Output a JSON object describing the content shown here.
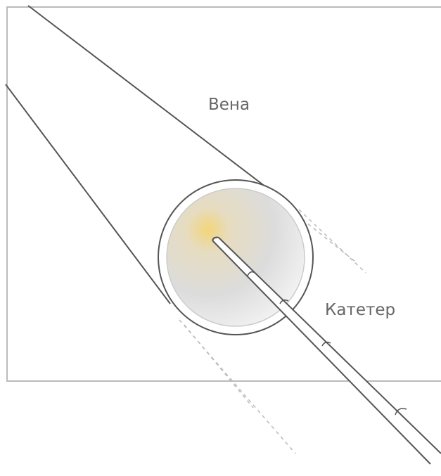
{
  "labels": {
    "vein": "Вена",
    "catheter": "Катетер"
  }
}
